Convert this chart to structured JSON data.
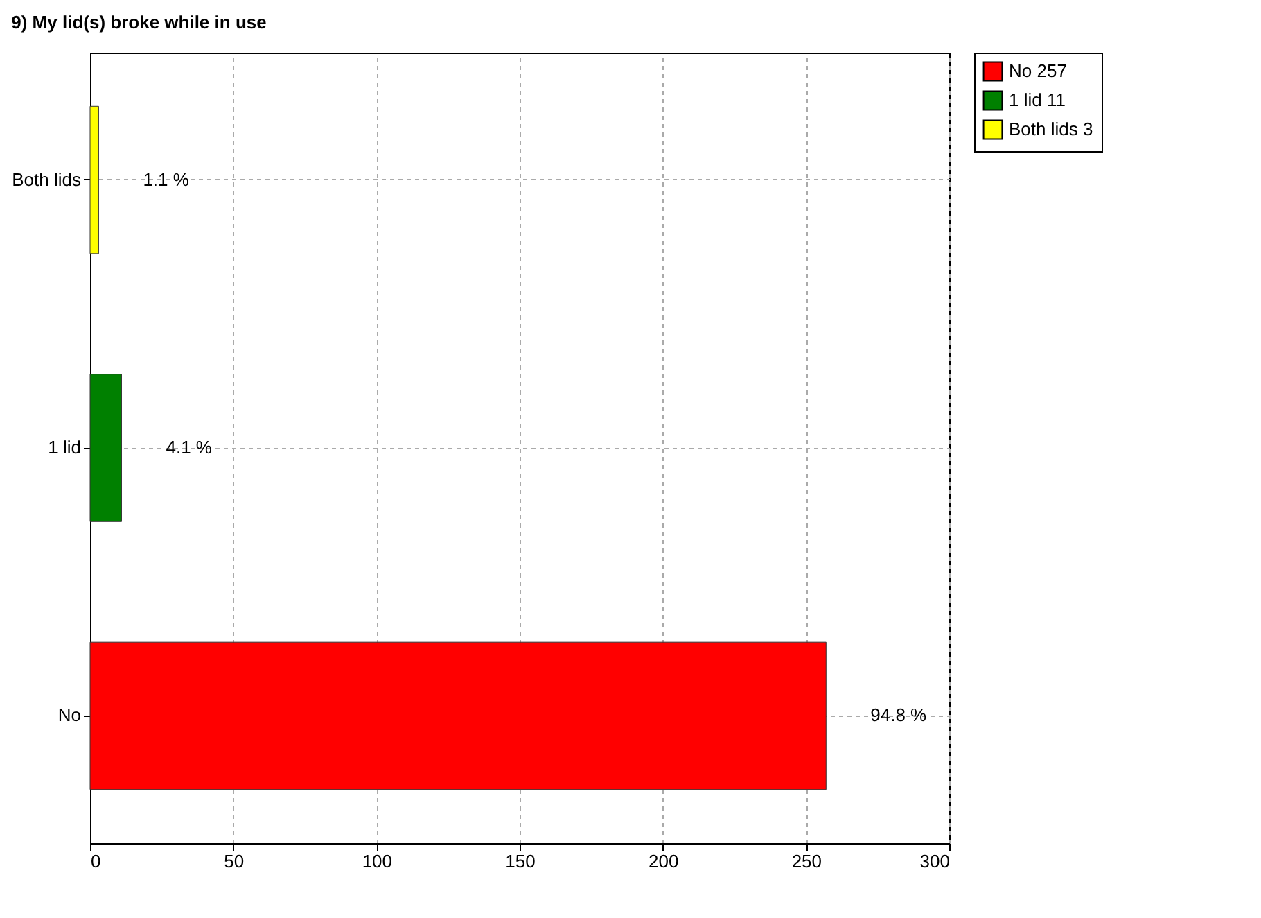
{
  "chart_data": {
    "type": "bar",
    "orientation": "horizontal",
    "title": "9) My lid(s) broke while in use",
    "categories": [
      "Both lids",
      "1 lid",
      "No"
    ],
    "series": [
      {
        "name": "No 257",
        "color": "#ff0000",
        "values": [
          null,
          null,
          257
        ]
      },
      {
        "name": "1 lid 11",
        "color": "#008000",
        "values": [
          null,
          11,
          null
        ]
      },
      {
        "name": "Both lids 3",
        "color": "#ffff00",
        "values": [
          3,
          null,
          null
        ]
      }
    ],
    "annotations": [
      {
        "text": "1.1 %",
        "x": 3,
        "y": "Both lids"
      },
      {
        "text": "4.1 %",
        "x": 11,
        "y": "1 lid"
      },
      {
        "text": "94.8 %",
        "x": 257,
        "y": "No"
      }
    ],
    "xlim": [
      0,
      300
    ],
    "xticks": [
      0,
      50,
      100,
      150,
      200,
      250,
      300
    ],
    "grid": true,
    "legend": "top right"
  }
}
